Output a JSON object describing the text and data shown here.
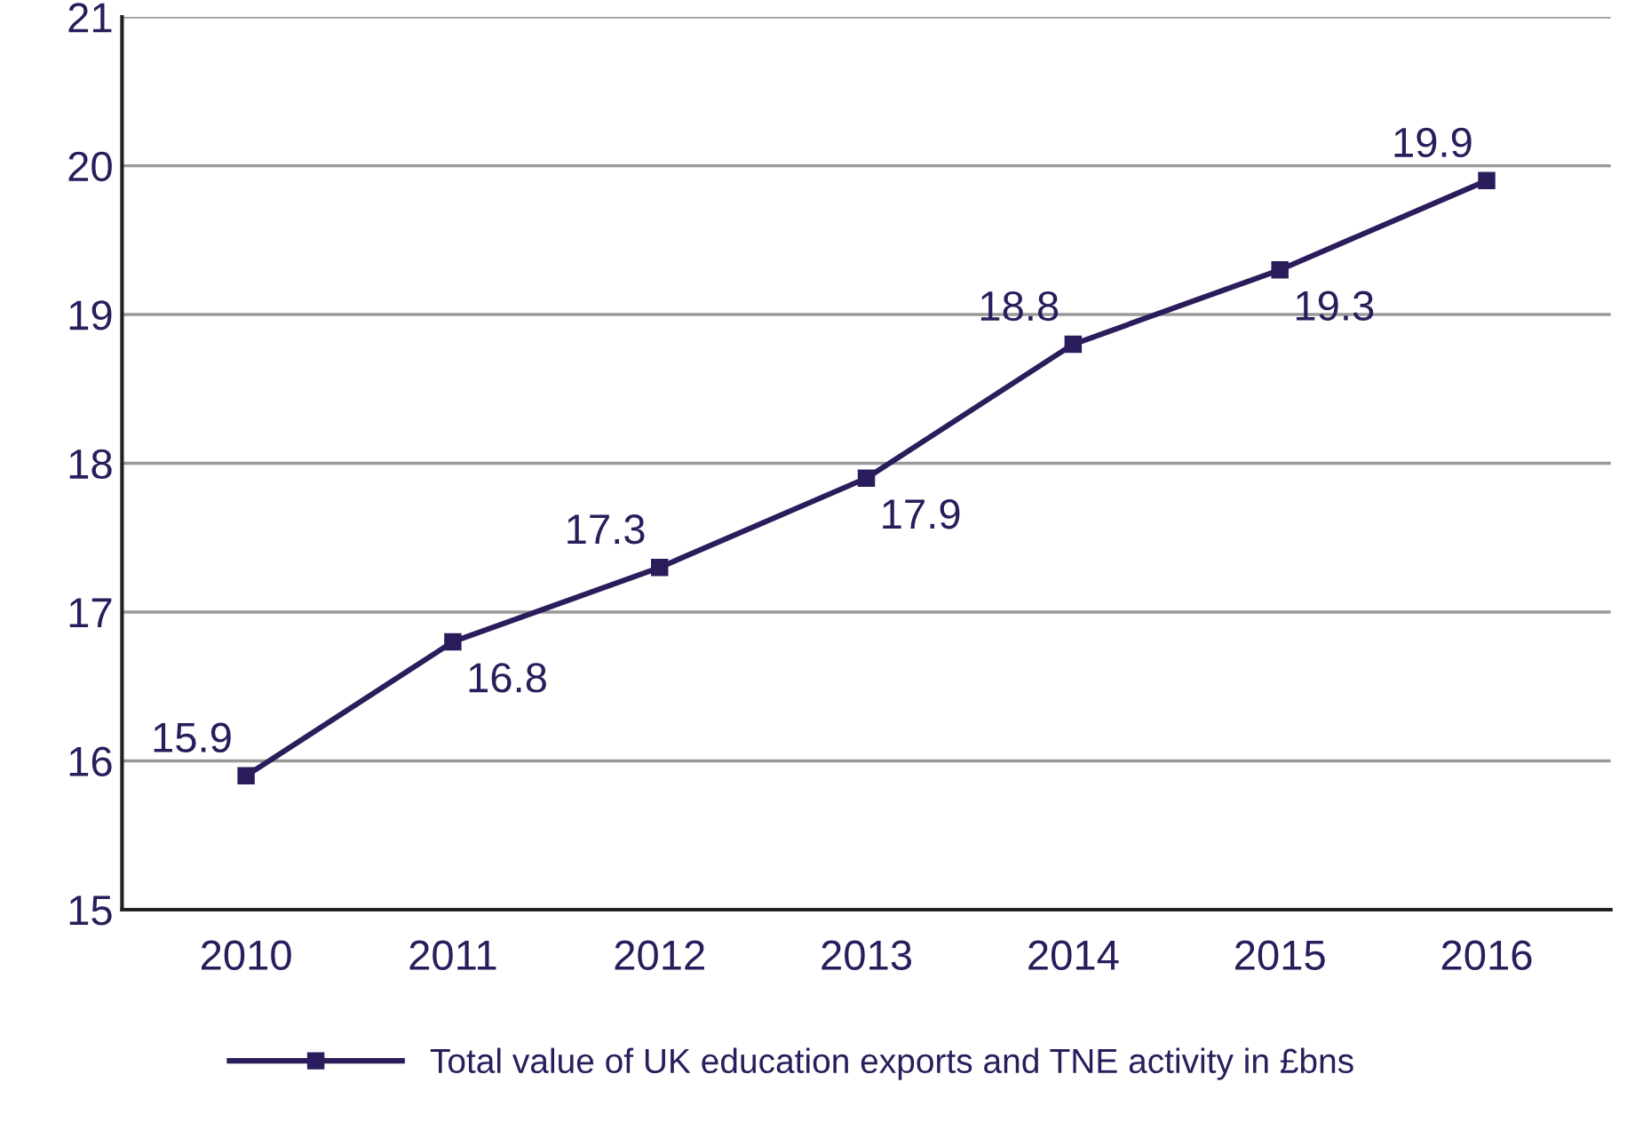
{
  "chart_data": {
    "type": "line",
    "categories": [
      "2010",
      "2011",
      "2012",
      "2013",
      "2014",
      "2015",
      "2016"
    ],
    "series": [
      {
        "name": "Total value of UK education exports and TNE activity in £bns",
        "color": "#2b1d5c",
        "values": [
          15.9,
          16.8,
          17.3,
          17.9,
          18.8,
          19.3,
          19.9
        ]
      }
    ],
    "ylim": [
      15,
      21
    ],
    "yticks": [
      15,
      16,
      17,
      18,
      19,
      20,
      21
    ],
    "grid": "y",
    "legend": "bottom",
    "marker": "square",
    "line_style": "solid",
    "data_labels": true
  }
}
